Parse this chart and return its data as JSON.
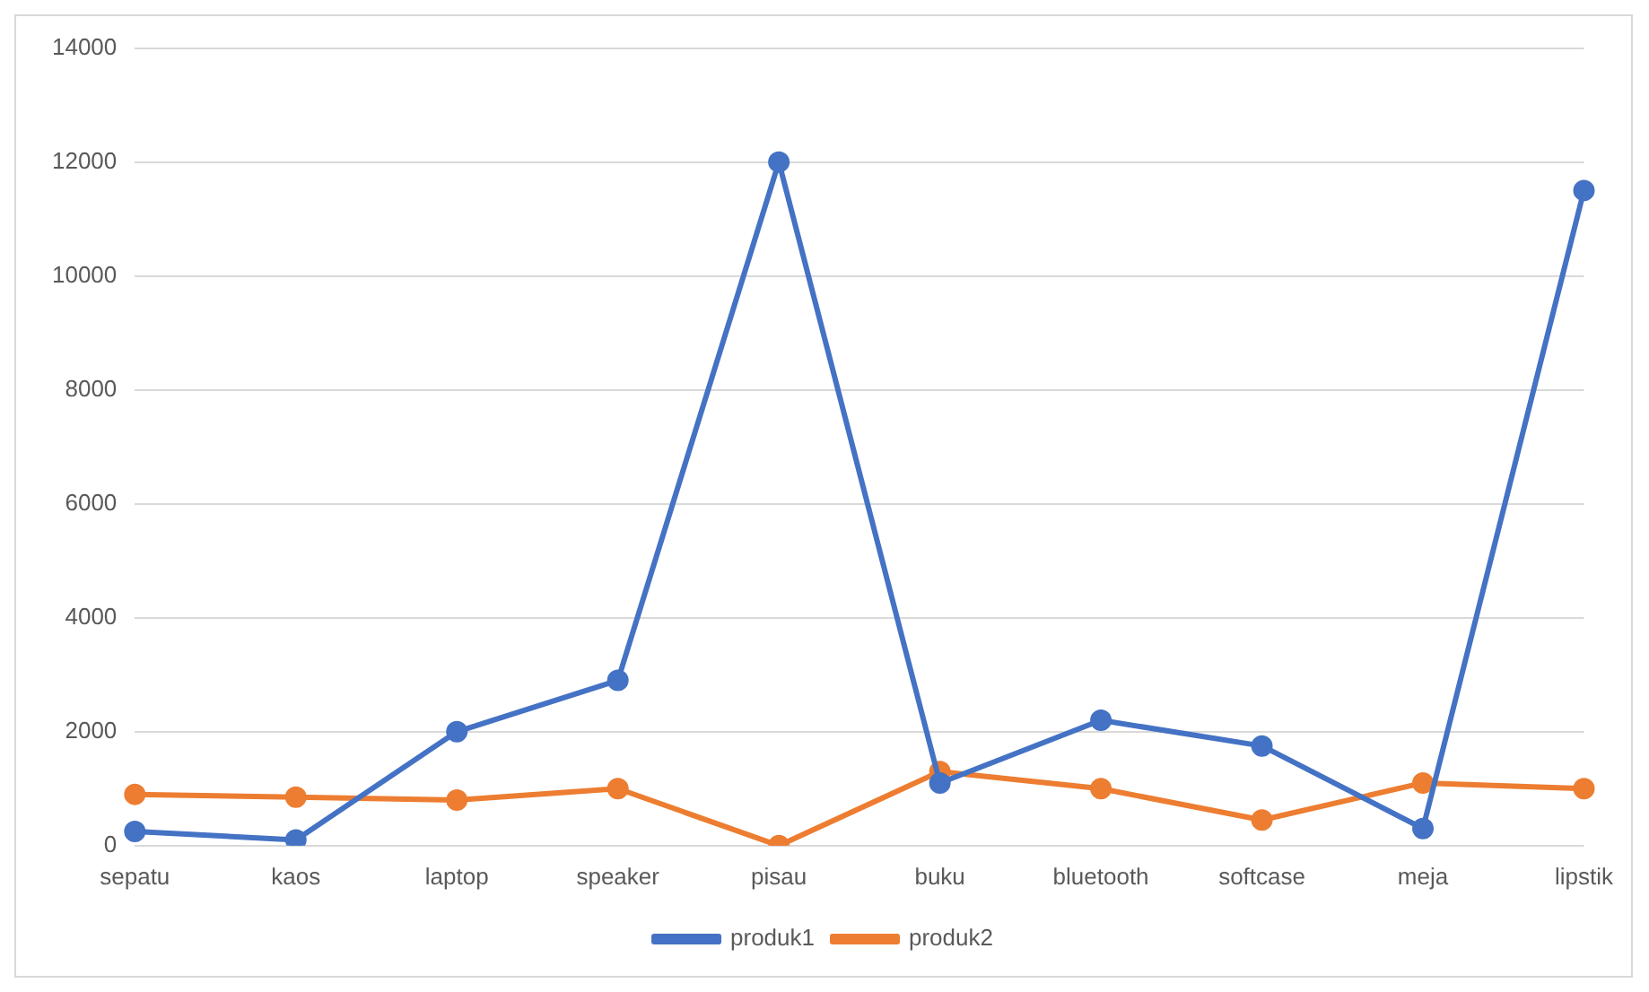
{
  "chart_data": {
    "type": "line",
    "categories": [
      "sepatu",
      "kaos",
      "laptop",
      "speaker",
      "pisau",
      "buku",
      "bluetooth",
      "softcase",
      "meja",
      "lipstik"
    ],
    "series": [
      {
        "name": "produk1",
        "color": "#4472c4",
        "values": [
          250,
          100,
          2000,
          2900,
          12000,
          1100,
          2200,
          1750,
          300,
          11500
        ]
      },
      {
        "name": "produk2",
        "color": "#ed7d31",
        "values": [
          900,
          850,
          800,
          1000,
          0,
          1300,
          1000,
          450,
          1100,
          1000
        ]
      }
    ],
    "ylim": [
      0,
      14000
    ],
    "yticks": [
      0,
      2000,
      4000,
      6000,
      8000,
      10000,
      12000,
      14000
    ],
    "grid": "y",
    "legend": "bottom",
    "marker": "circle",
    "line_style": "solid"
  }
}
